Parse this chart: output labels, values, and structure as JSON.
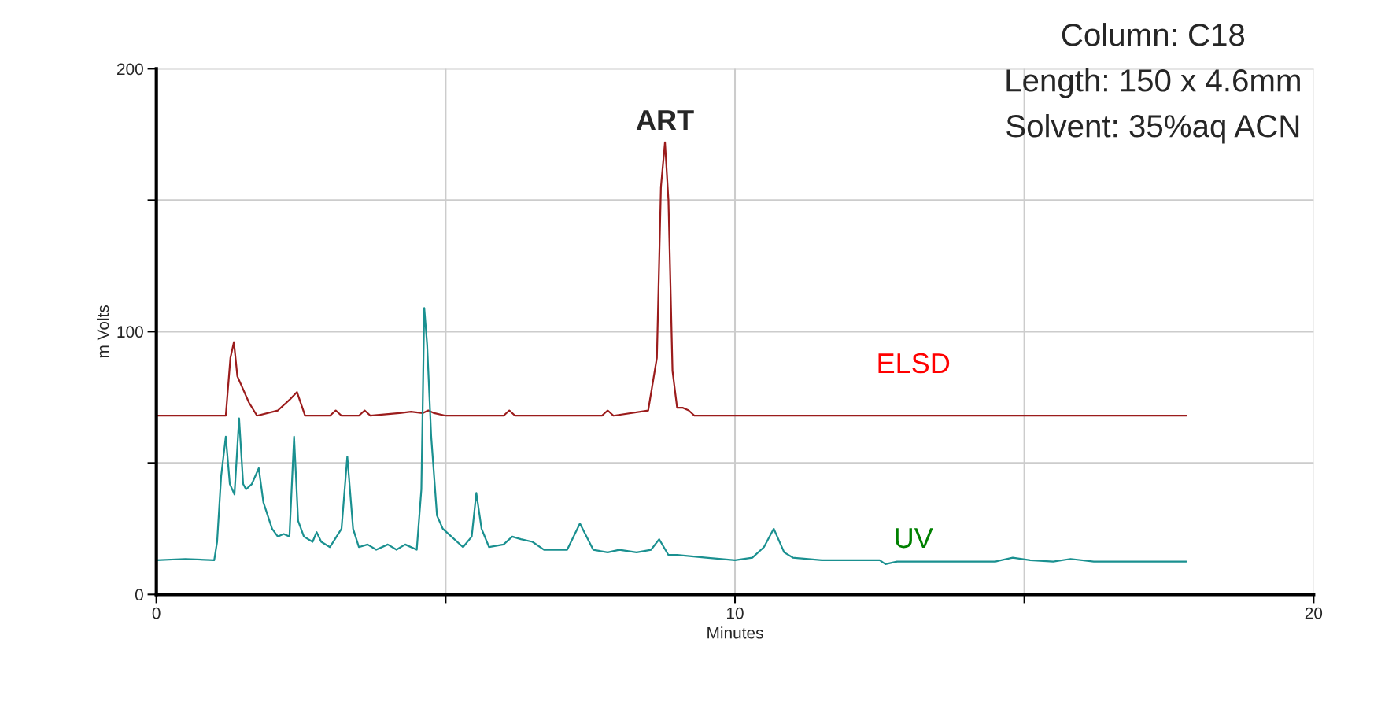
{
  "chart_data": {
    "type": "line",
    "xlabel": "Minutes",
    "ylabel": "m Volts",
    "xlim": [
      0,
      20
    ],
    "ylim": [
      0,
      200
    ],
    "xticks": [
      0,
      {
        "value": 5,
        "label": null
      },
      10,
      {
        "value": 15,
        "label": null
      },
      20
    ],
    "yticks": [
      0,
      {
        "value": 50,
        "label": null
      },
      100,
      {
        "value": 150,
        "label": null
      },
      200
    ],
    "grid": true,
    "legend": false,
    "marker": "none",
    "line_style": "solid",
    "annotations": [
      "Column: C18",
      "Length: 150 x 4.6mm",
      "Solvent: 35%aq ACN",
      {
        "text": "ART",
        "x": 8.79,
        "y": 172
      }
    ],
    "series": [
      {
        "name": "ELSD",
        "color": "#9b1c1c",
        "x": [
          0,
          1.2,
          1.28,
          1.34,
          1.4,
          1.46,
          1.6,
          1.74,
          2.1,
          2.3,
          2.43,
          2.57,
          3.0,
          3.1,
          3.2,
          3.5,
          3.6,
          3.7,
          4.2,
          4.4,
          4.6,
          4.7,
          4.8,
          5.0,
          6.0,
          6.1,
          6.2,
          7.7,
          7.8,
          7.9,
          8.5,
          8.65,
          8.72,
          8.79,
          8.85,
          8.92,
          9.0,
          9.1,
          9.2,
          9.3,
          17.8
        ],
        "values": [
          68,
          68,
          90,
          96,
          83,
          80,
          73,
          68,
          70,
          74,
          77,
          68,
          68,
          70,
          68,
          68,
          70,
          68,
          69,
          69.5,
          69,
          70,
          69,
          68,
          68,
          70,
          68,
          68,
          70,
          68,
          70,
          90,
          155,
          172,
          150,
          85,
          71,
          71,
          70,
          68,
          68
        ]
      },
      {
        "name": "UV",
        "color": "#1a9090",
        "x": [
          0,
          0.5,
          1.0,
          1.05,
          1.12,
          1.2,
          1.27,
          1.35,
          1.43,
          1.5,
          1.55,
          1.65,
          1.77,
          1.85,
          2.0,
          2.1,
          2.2,
          2.3,
          2.38,
          2.45,
          2.55,
          2.7,
          2.77,
          2.85,
          3.0,
          3.2,
          3.3,
          3.4,
          3.5,
          3.65,
          3.8,
          4.0,
          4.15,
          4.3,
          4.5,
          4.58,
          4.63,
          4.68,
          4.75,
          4.85,
          4.95,
          5.1,
          5.3,
          5.45,
          5.53,
          5.62,
          5.75,
          6.0,
          6.15,
          6.3,
          6.5,
          6.7,
          7.1,
          7.32,
          7.55,
          7.8,
          8.0,
          8.3,
          8.55,
          8.69,
          8.85,
          9.0,
          9.5,
          10.0,
          10.3,
          10.5,
          10.67,
          10.85,
          11.0,
          11.5,
          12.5,
          12.6,
          12.8,
          14.5,
          14.8,
          15.1,
          15.5,
          15.8,
          16.2,
          17.8
        ],
        "values": [
          13,
          13.5,
          13,
          20,
          45,
          60,
          42,
          38,
          67,
          42,
          40,
          42,
          48,
          35,
          25,
          22,
          23,
          22,
          60,
          28,
          22,
          20,
          23.7,
          20,
          18,
          25,
          52.5,
          25,
          18,
          19,
          17,
          19,
          17,
          19,
          17,
          40,
          109,
          95,
          60,
          30,
          25,
          22,
          18,
          22,
          38.6,
          25,
          18,
          19,
          22,
          21,
          20,
          17,
          17,
          27,
          17,
          16,
          17,
          16,
          17,
          21,
          15,
          15,
          14,
          13,
          14,
          18,
          25,
          16,
          14,
          13,
          13,
          11.5,
          12.5,
          12.5,
          14,
          13,
          12.5,
          13.5,
          12.5,
          12.5
        ]
      }
    ]
  }
}
